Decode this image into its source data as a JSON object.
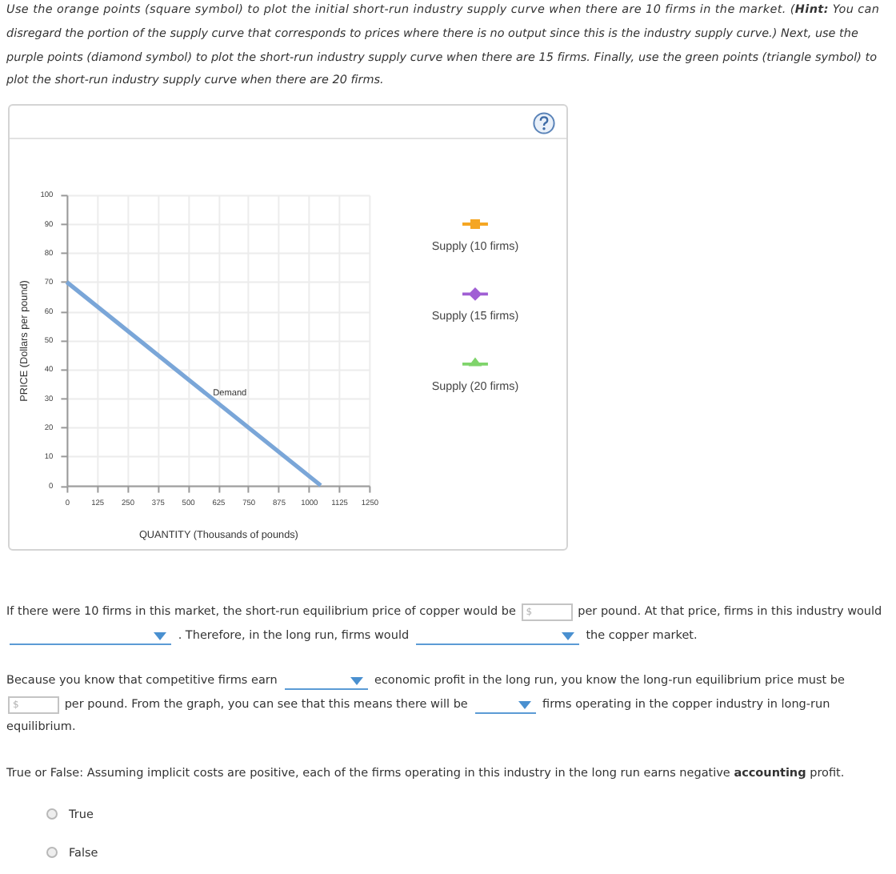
{
  "chart_data": {
    "type": "line",
    "xlabel": "QUANTITY (Thousands of pounds)",
    "ylabel": "PRICE (Dollars per pound)",
    "xlim": [
      0,
      1250
    ],
    "xticks": [
      0,
      125,
      250,
      375,
      500,
      625,
      750,
      875,
      1000,
      1125,
      1250
    ],
    "ylim": [
      0,
      100
    ],
    "yticks": [
      0,
      10,
      20,
      30,
      40,
      50,
      60,
      70,
      80,
      90,
      100
    ],
    "grid": true,
    "legend": "right",
    "series": [
      {
        "name": "Demand",
        "color": "#7aa6d8",
        "marker": "none",
        "x": [
          0,
          1050
        ],
        "values": [
          70,
          0
        ]
      },
      {
        "name": "Supply (10 firms)",
        "color": "#f5a623",
        "marker": "square"
      },
      {
        "name": "Supply (15 firms)",
        "color": "#a05fd4",
        "marker": "diamond"
      },
      {
        "name": "Supply (20 firms)",
        "color": "#7fd46b",
        "marker": "triangle"
      }
    ],
    "annotations": [
      "Use the orange points (square symbol) to plot the initial short-run industry supply curve when there are 10 firms in the market. (",
      "Hint:",
      "You can",
      "disregard the portion of the supply curve that corresponds to prices where there is no output since this is the industry supply curve.) Next, use the",
      "purple points (diamond symbol) to plot the short-run industry supply curve when there are 15 firms. Finally, use the green points (triangle symbol) to",
      "plot the short-run industry supply curve when there are 20 firms.",
      "If there were 10 firms in this market, the short-run equilibrium price of copper would be",
      "$",
      "per pound. At that price, firms in this industry would",
      ". Therefore, in the long run, firms would",
      "the copper market.",
      "Because you know that competitive firms earn",
      "economic profit in the long run, you know the long-run equilibrium price must be",
      "$",
      "per pound. From the graph, you can see that this means there will be",
      "firms operating in the copper industry in long-run",
      "equilibrium.",
      "True or False: Assuming implicit costs are positive, each of the firms operating in this industry in the long run earns negative",
      "accounting",
      "profit.",
      "True",
      "False"
    ]
  }
}
